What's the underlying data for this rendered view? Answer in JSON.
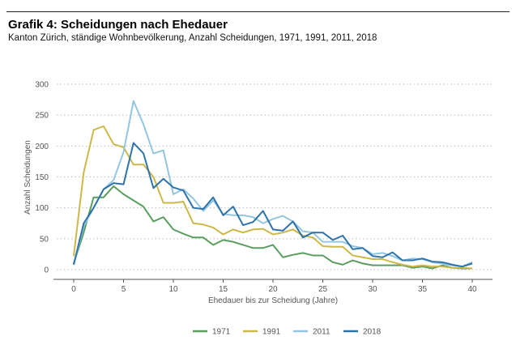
{
  "title": "Grafik 4: Scheidungen nach Ehedauer",
  "subtitle": "Kanton Zürich, ständige Wohnbevölkerung, Anzahl Scheidungen, 1971, 1991, 2011, 2018",
  "chart_data": {
    "type": "line",
    "title": "Grafik 4: Scheidungen nach Ehedauer",
    "xlabel": "Ehedauer bis zur Scheidung (Jahre)",
    "ylabel": "Anzahl Scheidungen",
    "xlim": [
      0,
      40
    ],
    "ylim": [
      0,
      300
    ],
    "xticks": [
      0,
      5,
      10,
      15,
      20,
      25,
      30,
      35,
      40
    ],
    "yticks": [
      0,
      50,
      100,
      150,
      200,
      250,
      300
    ],
    "grid": "horizontal dotted",
    "legend": "bottom",
    "series": [
      {
        "name": "1971",
        "color": "#5a9e5f",
        "values": [
          10,
          60,
          117,
          117,
          135,
          122,
          112,
          102,
          78,
          85,
          65,
          58,
          52,
          52,
          40,
          48,
          45,
          40,
          35,
          35,
          40,
          20,
          24,
          27,
          23,
          23,
          12,
          8,
          15,
          10,
          7,
          7,
          7,
          7,
          3,
          5,
          2,
          7,
          3,
          2,
          2
        ]
      },
      {
        "name": "1991",
        "color": "#cdb84a",
        "values": [
          22,
          157,
          226,
          232,
          203,
          198,
          170,
          170,
          150,
          108,
          108,
          110,
          75,
          73,
          68,
          57,
          65,
          60,
          65,
          66,
          57,
          60,
          65,
          55,
          52,
          38,
          37,
          37,
          23,
          20,
          17,
          17,
          12,
          8,
          5,
          7,
          5,
          5,
          3,
          3,
          2
        ]
      },
      {
        "name": "2011",
        "color": "#94c6e2",
        "values": [
          8,
          70,
          100,
          130,
          145,
          190,
          273,
          235,
          188,
          193,
          122,
          130,
          115,
          95,
          112,
          90,
          88,
          88,
          85,
          75,
          82,
          87,
          78,
          62,
          60,
          45,
          45,
          45,
          38,
          35,
          25,
          27,
          22,
          15,
          18,
          17,
          12,
          10,
          7,
          5,
          12
        ]
      },
      {
        "name": "2018",
        "color": "#2f73a8",
        "values": [
          8,
          75,
          100,
          130,
          140,
          138,
          205,
          188,
          132,
          147,
          133,
          128,
          100,
          98,
          117,
          88,
          102,
          72,
          77,
          95,
          65,
          63,
          78,
          52,
          60,
          60,
          48,
          55,
          33,
          35,
          22,
          20,
          28,
          15,
          15,
          18,
          13,
          12,
          8,
          5,
          10
        ]
      }
    ]
  }
}
